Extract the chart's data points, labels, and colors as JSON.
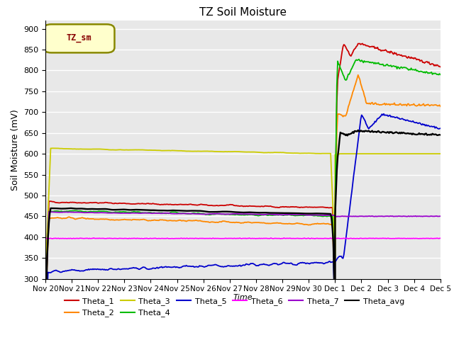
{
  "title": "TZ Soil Moisture",
  "ylabel": "Soil Moisture (mV)",
  "xlabel": "Time",
  "ylim": [
    300,
    920
  ],
  "yticks": [
    300,
    350,
    400,
    450,
    500,
    550,
    600,
    650,
    700,
    750,
    800,
    850,
    900
  ],
  "xtick_labels": [
    "Nov 20",
    "Nov 21",
    "Nov 22",
    "Nov 23",
    "Nov 24",
    "Nov 25",
    "Nov 26",
    "Nov 27",
    "Nov 28",
    "Nov 29",
    "Nov 30",
    "Dec 1",
    "Dec 2",
    "Dec 3",
    "Dec 4",
    "Dec 5"
  ],
  "legend_label": "TZ_sm",
  "bg_color": "#e8e8e8",
  "colors": {
    "Theta_1": "#cc0000",
    "Theta_2": "#ff8800",
    "Theta_3": "#cccc00",
    "Theta_4": "#00bb00",
    "Theta_5": "#0000cc",
    "Theta_6": "#ff00ff",
    "Theta_7": "#9900cc",
    "Theta_avg": "#000000"
  }
}
